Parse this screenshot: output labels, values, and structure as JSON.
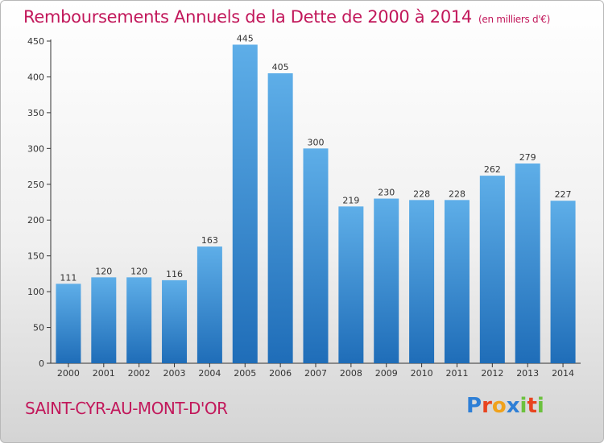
{
  "header": {
    "title": "Remboursements Annuels de la Dette de 2000 à 2014",
    "unit": "(en milliers d'€)"
  },
  "footer": {
    "city": "SAINT-CYR-AU-MONT-D'OR",
    "logo_letters": [
      "P",
      "r",
      "o",
      "x",
      "i",
      "t",
      "i"
    ]
  },
  "chart_data": {
    "type": "bar",
    "title": "Remboursements Annuels de la Dette de 2000 à 2014",
    "categories": [
      "2000",
      "2001",
      "2002",
      "2003",
      "2004",
      "2005",
      "2006",
      "2007",
      "2008",
      "2009",
      "2010",
      "2011",
      "2012",
      "2013",
      "2014"
    ],
    "values": [
      111,
      120,
      120,
      116,
      163,
      445,
      405,
      300,
      219,
      230,
      228,
      228,
      262,
      279,
      227
    ],
    "ylim": [
      0,
      450
    ],
    "yticks": [
      0,
      50,
      100,
      150,
      200,
      250,
      300,
      350,
      400,
      450
    ],
    "grid": false,
    "colors": {
      "bar_top": "#5eaee8",
      "bar_bottom": "#1f6db8",
      "title": "#c2185b"
    }
  }
}
